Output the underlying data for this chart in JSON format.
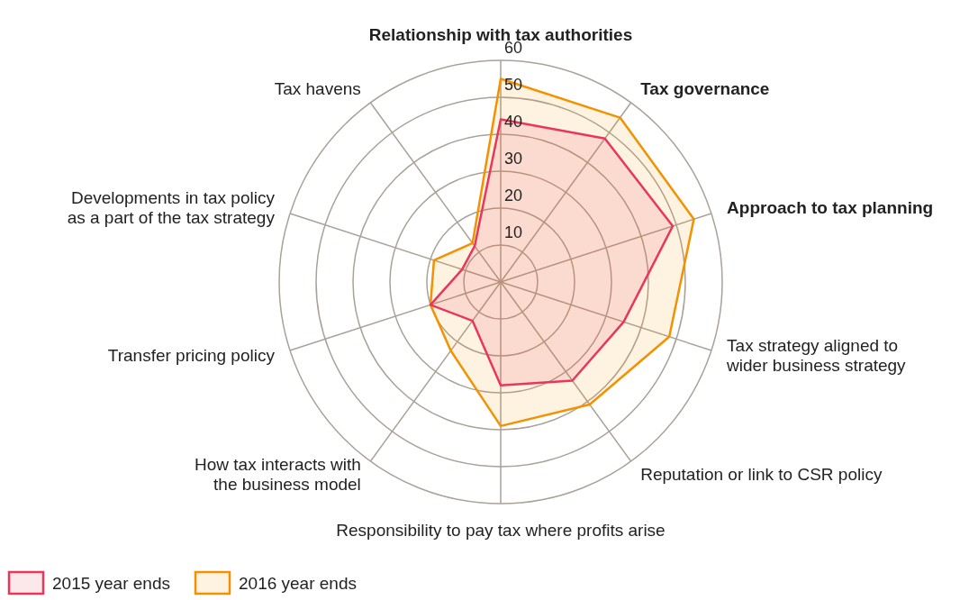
{
  "chart_data": {
    "type": "radar",
    "categories": [
      "Relationship with tax authorities",
      "Tax governance",
      "Approach to tax planning",
      "Tax strategy aligned to wider business strategy",
      "Reputation or link to CSR policy",
      "Responsibility to pay tax where profits arise",
      "How tax interacts with the business model",
      "Transfer pricing policy",
      "Developments in tax policy as a part of the tax strategy",
      "Tax havens"
    ],
    "series": [
      {
        "name": "2015 year ends",
        "color": "#e8375a",
        "values": [
          44,
          48,
          49,
          35,
          33,
          28,
          13,
          20,
          11,
          12
        ]
      },
      {
        "name": "2016 year ends",
        "color": "#f39200",
        "values": [
          55,
          55,
          55,
          48,
          41,
          39,
          23,
          20,
          19,
          13
        ]
      }
    ],
    "ylim": [
      0,
      60
    ],
    "yticks": [
      10,
      20,
      30,
      40,
      50,
      60
    ],
    "grid": true,
    "legend": "bottom left"
  }
}
